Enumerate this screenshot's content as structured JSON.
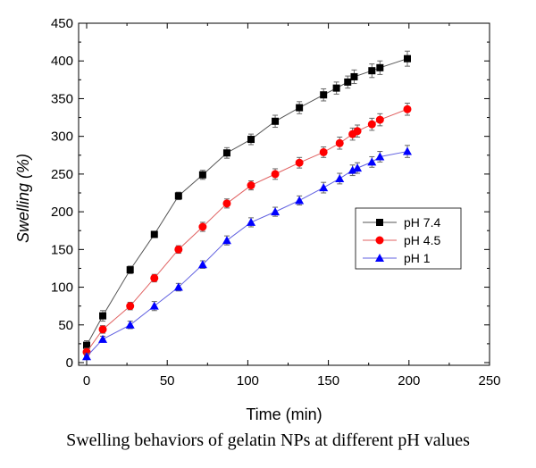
{
  "caption": "Swelling behaviors of gelatin NPs at different pH values",
  "chart_data": {
    "type": "line",
    "xlabel": "Time (min)",
    "ylabel": "Swelling (%)",
    "xlim": [
      0,
      250
    ],
    "ylim": [
      0,
      450
    ],
    "xticks": [
      "0",
      "50",
      "100",
      "150",
      "200",
      "250"
    ],
    "yticks": [
      "0",
      "50",
      "100",
      "150",
      "200",
      "250",
      "300",
      "350",
      "400",
      "450"
    ],
    "grid": false,
    "legend_position": "right-middle",
    "series": [
      {
        "name": "pH 7.4",
        "color": "#000000",
        "line_color": "#555555",
        "marker": "square",
        "x": [
          0,
          10,
          27,
          42,
          57,
          72,
          87,
          102,
          117,
          132,
          147,
          155,
          162,
          166,
          177,
          182,
          199
        ],
        "y": [
          23,
          62,
          123,
          170,
          221,
          249,
          278,
          296,
          320,
          338,
          355,
          364,
          372,
          379,
          387,
          391,
          403
        ],
        "err": [
          6,
          7,
          5,
          4,
          5,
          6,
          7,
          7,
          8,
          8,
          8,
          8,
          8,
          9,
          9,
          9,
          10
        ]
      },
      {
        "name": "pH 4.5",
        "color": "#ff0000",
        "line_color": "#e06060",
        "marker": "circle",
        "x": [
          0,
          10,
          27,
          42,
          57,
          72,
          87,
          102,
          117,
          132,
          147,
          157,
          165,
          168,
          177,
          182,
          199
        ],
        "y": [
          14,
          44,
          75,
          112,
          150,
          180,
          211,
          235,
          250,
          265,
          279,
          291,
          303,
          307,
          316,
          322,
          336
        ],
        "err": [
          5,
          5,
          5,
          5,
          5,
          6,
          6,
          6,
          7,
          7,
          7,
          8,
          8,
          8,
          8,
          8,
          8
        ]
      },
      {
        "name": "pH 1",
        "color": "#0000ff",
        "line_color": "#6060e0",
        "marker": "triangle",
        "x": [
          0,
          10,
          27,
          42,
          57,
          72,
          87,
          102,
          117,
          132,
          147,
          157,
          165,
          168,
          177,
          182,
          199
        ],
        "y": [
          8,
          31,
          50,
          75,
          100,
          130,
          162,
          186,
          200,
          215,
          232,
          244,
          255,
          258,
          266,
          273,
          280
        ],
        "err": [
          4,
          4,
          5,
          6,
          5,
          5,
          6,
          6,
          6,
          6,
          7,
          7,
          7,
          7,
          7,
          7,
          8
        ]
      }
    ]
  }
}
